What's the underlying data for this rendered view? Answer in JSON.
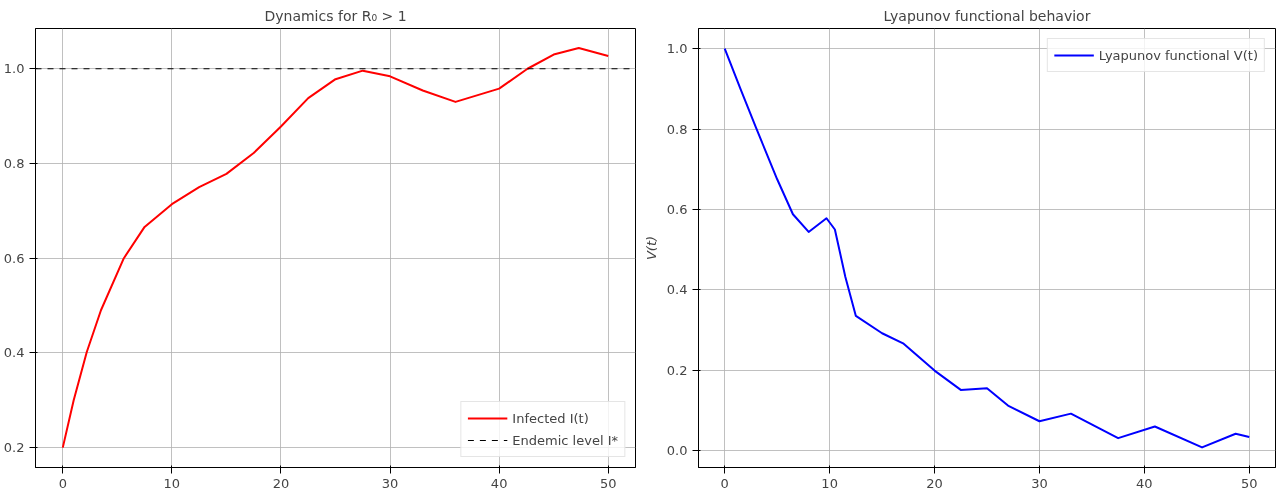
{
  "chart_data": [
    {
      "type": "line",
      "title": "Dynamics for R₀ > 1",
      "xlim": [
        -2.5,
        52.5
      ],
      "ylim": [
        0.158,
        1.085
      ],
      "xticks": [
        0,
        10,
        20,
        30,
        40,
        50
      ],
      "yticks": [
        {
          "value": 0.2,
          "label": "0.2"
        },
        {
          "value": 0.4,
          "label": "0.4"
        },
        {
          "value": 0.6,
          "label": "0.6"
        },
        {
          "value": 0.8,
          "label": "0.8"
        },
        {
          "value": 1.0,
          "label": "1.0"
        }
      ],
      "grid": true,
      "legend": "bottom right",
      "line_style": "solid",
      "series": [
        {
          "name": "Infected I(t)",
          "color": "#ff0000",
          "x": [
            0,
            1,
            2.2,
            3.5,
            5.6,
            7.5,
            10,
            12.5,
            15,
            17.5,
            20,
            22.5,
            25,
            27.5,
            30,
            33,
            36,
            40,
            42.6,
            45,
            47.3,
            50
          ],
          "values": [
            0.2,
            0.3,
            0.402,
            0.49,
            0.6,
            0.666,
            0.714,
            0.75,
            0.778,
            0.822,
            0.878,
            0.938,
            0.978,
            0.996,
            0.984,
            0.954,
            0.93,
            0.958,
            1.0,
            1.03,
            1.044,
            1.027
          ]
        }
      ],
      "ref_lines": [
        {
          "axis": "y",
          "value": 1.0,
          "label": "Endemic level I*",
          "color": "#000000",
          "line_style": "dashed"
        }
      ]
    },
    {
      "type": "line",
      "title": "Lyapunov functional behavior",
      "ylabel": "V(t)",
      "xlim": [
        -2.5,
        52.5
      ],
      "ylim": [
        -0.042,
        1.05
      ],
      "xticks": [
        0,
        10,
        20,
        30,
        40,
        50
      ],
      "yticks": [
        {
          "value": 0.0,
          "label": "0.0"
        },
        {
          "value": 0.2,
          "label": "0.2"
        },
        {
          "value": 0.4,
          "label": "0.4"
        },
        {
          "value": 0.6,
          "label": "0.6"
        },
        {
          "value": 0.8,
          "label": "0.8"
        },
        {
          "value": 1.0,
          "label": "1.0"
        }
      ],
      "grid": true,
      "legend": "top right",
      "line_style": "solid",
      "series": [
        {
          "name": "Lyapunov functional V(t)",
          "color": "#0000ff",
          "x": [
            0,
            1.5,
            3,
            5,
            6.5,
            8,
            9.7,
            10.5,
            11.5,
            12.5,
            15,
            17,
            20,
            22.5,
            25,
            27,
            30,
            33,
            37.5,
            41,
            45.5,
            48.7,
            50
          ],
          "values": [
            1.0,
            0.9,
            0.802,
            0.675,
            0.588,
            0.544,
            0.578,
            0.55,
            0.432,
            0.335,
            0.292,
            0.267,
            0.199,
            0.151,
            0.155,
            0.112,
            0.073,
            0.092,
            0.031,
            0.06,
            0.008,
            0.042,
            0.034
          ]
        }
      ]
    }
  ]
}
